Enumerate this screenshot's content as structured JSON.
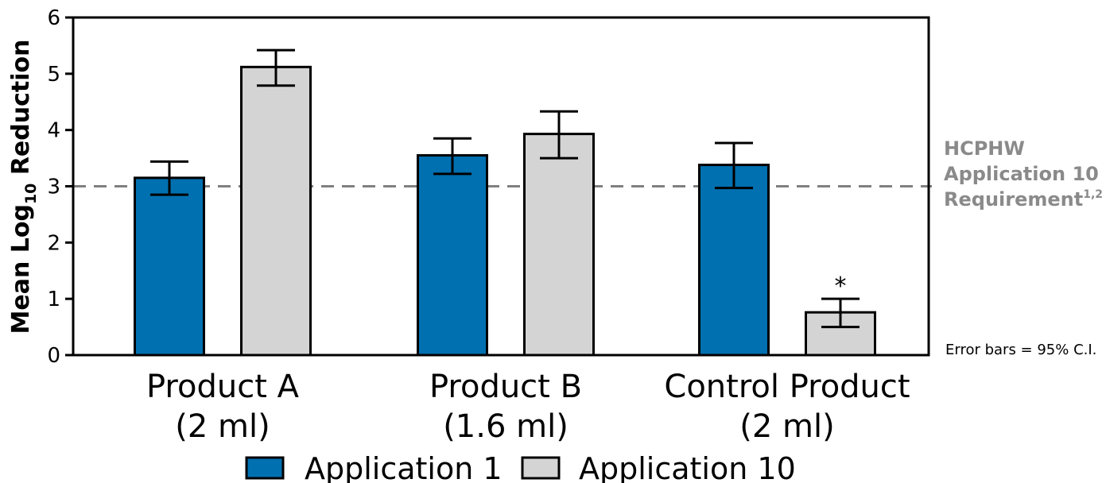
{
  "chart_data": {
    "type": "bar",
    "categories": [
      [
        "Product A",
        "(2 ml)"
      ],
      [
        "Product B",
        "(1.6 ml)"
      ],
      [
        "Control Product",
        "(2 ml)"
      ]
    ],
    "series": [
      {
        "name": "Application 1",
        "color": "#0070b0",
        "values": [
          3.15,
          3.55,
          3.38
        ],
        "ci_low": [
          2.85,
          3.22,
          2.97
        ],
        "ci_high": [
          3.44,
          3.85,
          3.77
        ]
      },
      {
        "name": "Application 10",
        "color": "#d4d4d4",
        "values": [
          5.12,
          3.93,
          0.76
        ],
        "ci_low": [
          4.79,
          3.5,
          0.5
        ],
        "ci_high": [
          5.42,
          4.33,
          1.0
        ]
      }
    ],
    "ylabel": "Mean Log10 Reduction",
    "ylabel_parts": {
      "pre": "Mean Log",
      "sub": "10",
      "post": " Reduction"
    },
    "ylim": [
      0,
      6
    ],
    "yticks": [
      0,
      1,
      2,
      3,
      4,
      5,
      6
    ],
    "reference_line": {
      "value": 3,
      "color": "#808080",
      "label_lines": [
        "HCPHW",
        "Application 10",
        "Requirement"
      ],
      "label_superscript": "1,2"
    },
    "annotations": [
      {
        "series": 1,
        "category": 2,
        "text": "*"
      }
    ],
    "note": "Error bars = 95% C.I.",
    "legend_position": "bottom",
    "grid": false
  }
}
